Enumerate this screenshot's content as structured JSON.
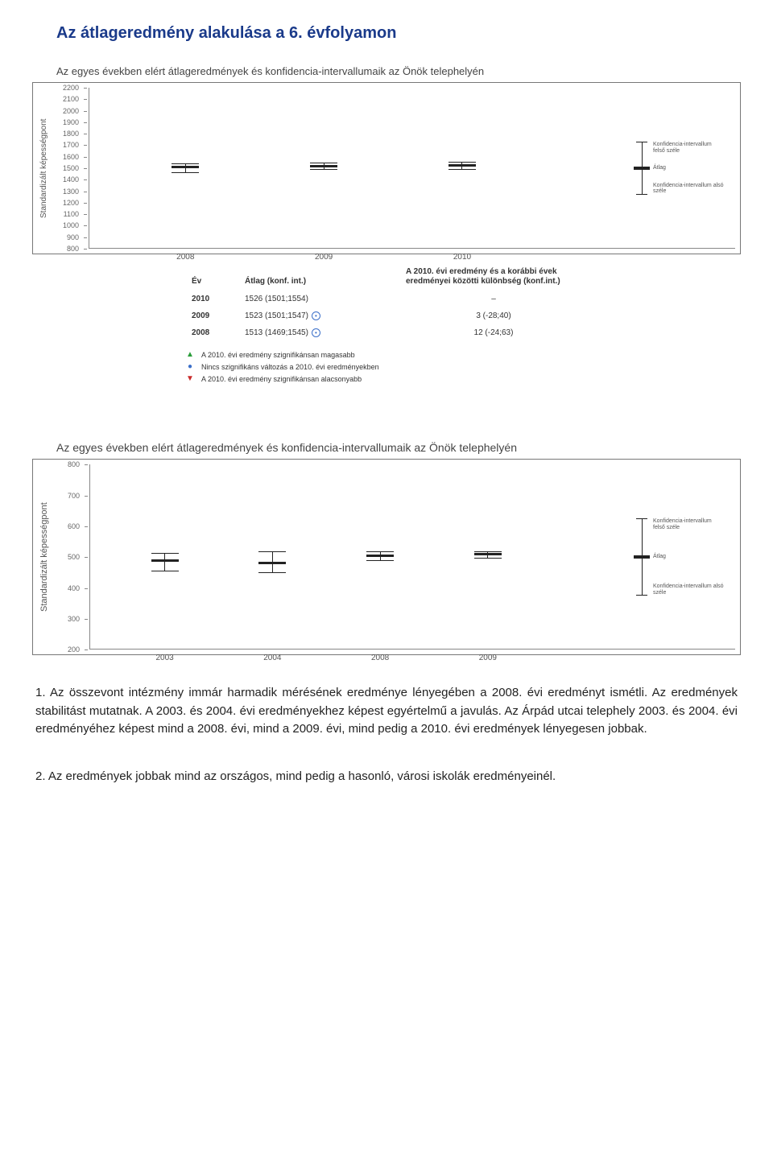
{
  "header": {
    "title": "Az átlageredmény alakulása a 6. évfolyamon",
    "subtitle1": "Az egyes években elért átlageredmények és konfidencia-intervallumaik az Önök telephelyén",
    "subtitle2": "Az egyes években elért átlageredmények és konfidencia-intervallumaik az Önök telephelyén"
  },
  "chart1": {
    "type": "error-bar",
    "ylabel": "Standardizált képességpont",
    "ymin": 800,
    "ymax": 2200,
    "ystep": 100,
    "background_color": "#ffffff",
    "axis_color": "#888888",
    "marker_color": "#222222",
    "tick_fontsize": 9,
    "label_fontsize": 10,
    "xcats": [
      "2008",
      "2009",
      "2010"
    ],
    "points": [
      {
        "x": "2008",
        "mean": 1513,
        "low": 1469,
        "high": 1545
      },
      {
        "x": "2009",
        "mean": 1523,
        "low": 1501,
        "high": 1547
      },
      {
        "x": "2010",
        "mean": 1526,
        "low": 1501,
        "high": 1554
      }
    ],
    "legend": {
      "top": "Konfidencia-intervallum felső széle",
      "mid": "Átlag",
      "bot": "Konfidencia-intervallum alsó széle"
    }
  },
  "table": {
    "headers": {
      "year": "Év",
      "avg": "Átlag (konf. int.)",
      "diff": "A 2010. évi eredmény és a korábbi évek eredményei közötti különbség (konf.int.)"
    },
    "rows": [
      {
        "year": "2010",
        "avg": "1526 (1501;1554)",
        "mark": "",
        "diff": "–"
      },
      {
        "year": "2009",
        "avg": "1523 (1501;1547)",
        "mark": "●",
        "diff": "3 (-28;40)"
      },
      {
        "year": "2008",
        "avg": "1513 (1469;1545)",
        "mark": "●",
        "diff": "12 (-24;63)"
      }
    ],
    "legend": [
      {
        "icon": "up",
        "text": "A 2010. évi eredmény szignifikánsan magasabb"
      },
      {
        "icon": "mid",
        "text": "Nincs szignifikáns változás a 2010. évi eredményekben"
      },
      {
        "icon": "down",
        "text": "A 2010. évi eredmény szignifikánsan alacsonyabb"
      }
    ]
  },
  "chart2": {
    "type": "error-bar",
    "ylabel": "Standardizált képességpont",
    "ymin": 200,
    "ymax": 800,
    "ystep": 100,
    "background_color": "#ffffff",
    "axis_color": "#888888",
    "marker_color": "#222222",
    "tick_fontsize": 10,
    "label_fontsize": 11,
    "xcats": [
      "2003",
      "2004",
      "2008",
      "2009"
    ],
    "points": [
      {
        "x": "2003",
        "mean": 490,
        "low": 460,
        "high": 515
      },
      {
        "x": "2004",
        "mean": 482,
        "low": 455,
        "high": 518
      },
      {
        "x": "2008",
        "mean": 506,
        "low": 492,
        "high": 520
      },
      {
        "x": "2009",
        "mean": 510,
        "low": 502,
        "high": 518
      }
    ],
    "legend": {
      "top": "Konfidencia-intervallum felső széle",
      "mid": "Átlag",
      "bot": "Konfidencia-intervallum alsó széle"
    },
    "legend_range": {
      "low": 355,
      "mean": 490,
      "high": 620
    }
  },
  "body": {
    "p1": "1. Az összevont intézmény immár harmadik mérésének eredménye lényegében a 2008. évi eredményt ismétli. Az eredmények stabilitást mutatnak. A 2003. és 2004. évi eredményekhez képest egyértelmű a javulás. Az Árpád utcai telephely 2003. és 2004. évi eredményéhez képest mind a 2008. évi, mind a 2009. évi, mind pedig a 2010. évi eredmények lényegesen jobbak.",
    "p2": "2. Az eredmények jobbak mind az országos, mind pedig a hasonló, városi iskolák eredményeinél."
  }
}
